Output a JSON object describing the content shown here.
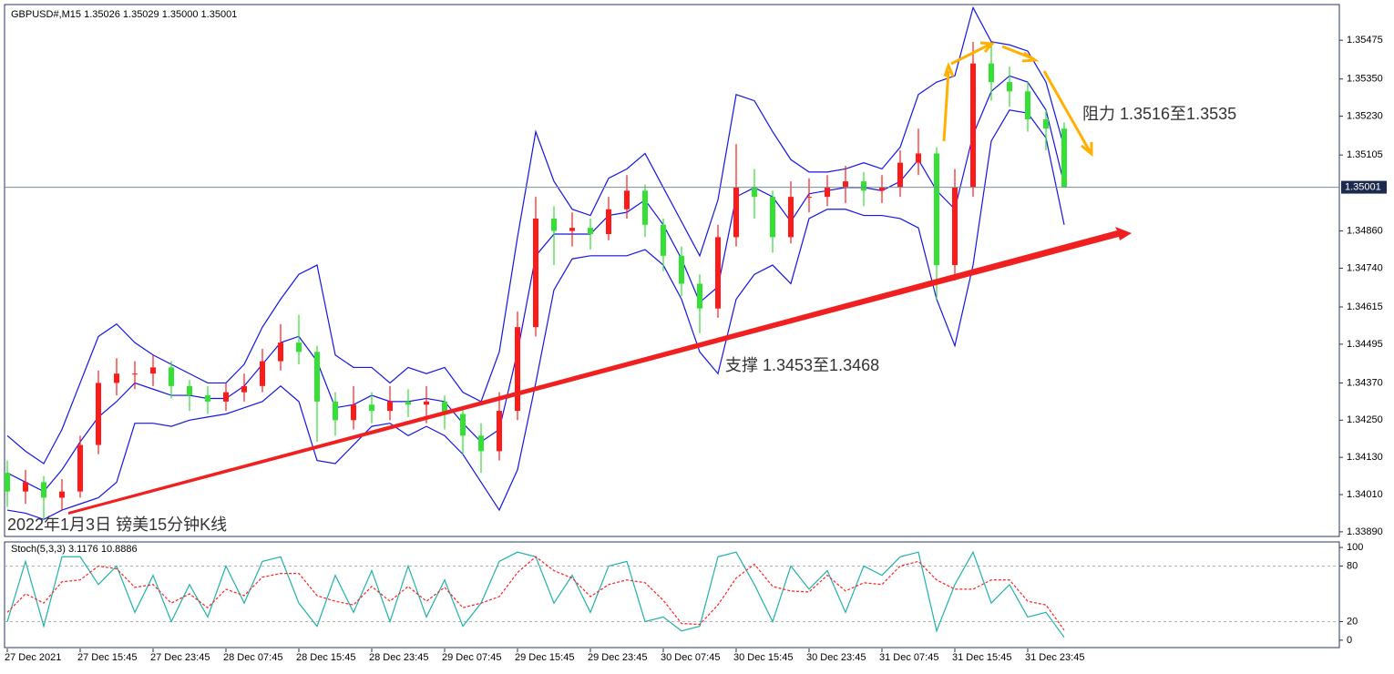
{
  "chart_data": [
    {
      "type": "candlestick",
      "title": "GBPUSD#,M15  1.35026 1.35029 1.35000 1.35001",
      "categories": [
        "27 Dec 2021",
        null,
        null,
        null,
        "27 Dec 15:45",
        null,
        null,
        null,
        "27 Dec 23:45",
        null,
        null,
        null,
        "28 Dec 07:45",
        null,
        null,
        null,
        "28 Dec 15:45",
        null,
        null,
        null,
        "28 Dec 23:45",
        null,
        null,
        null,
        "29 Dec 07:45",
        null,
        null,
        null,
        "29 Dec 15:45",
        null,
        null,
        null,
        "29 Dec 23:45",
        null,
        null,
        null,
        "30 Dec 07:45",
        null,
        null,
        null,
        "30 Dec 15:45",
        null,
        null,
        null,
        "30 Dec 23:45",
        null,
        null,
        null,
        "31 Dec 07:45",
        null,
        null,
        null,
        "31 Dec 15:45",
        null,
        null,
        null,
        "31 Dec 23:45",
        null,
        null
      ],
      "open": [
        1.3408,
        1.3402,
        1.3405,
        1.34,
        1.3402,
        1.3417,
        1.3437,
        1.344,
        1.344,
        1.3442,
        1.3436,
        1.3433,
        1.3431,
        1.3434,
        1.3436,
        1.3444,
        1.345,
        1.3447,
        1.3431,
        1.3425,
        1.343,
        1.3428,
        1.3431,
        1.343,
        1.3431,
        1.3427,
        1.342,
        1.3415,
        1.3428,
        1.3455,
        1.349,
        1.3486,
        1.3487,
        1.3485,
        1.3493,
        1.3499,
        1.3488,
        1.3478,
        1.3469,
        1.3461,
        1.3484,
        1.35,
        1.3497,
        1.3484,
        1.3497,
        1.3497,
        1.35,
        1.3502,
        1.3499,
        1.35,
        1.3508,
        1.3511,
        1.3475,
        1.35,
        1.354,
        1.3534,
        1.3531,
        1.3522,
        1.3519
      ],
      "high": [
        1.3412,
        1.3409,
        1.3407,
        1.3406,
        1.342,
        1.3441,
        1.3445,
        1.3444,
        1.3446,
        1.3444,
        1.3438,
        1.3436,
        1.3437,
        1.344,
        1.3448,
        1.3456,
        1.3459,
        1.3449,
        1.3434,
        1.3436,
        1.3434,
        1.3436,
        1.3435,
        1.3436,
        1.3433,
        1.3429,
        1.3424,
        1.3434,
        1.346,
        1.3497,
        1.3494,
        1.3492,
        1.349,
        1.3497,
        1.3504,
        1.3501,
        1.349,
        1.3481,
        1.3472,
        1.3488,
        1.3514,
        1.3506,
        1.3499,
        1.3502,
        1.3503,
        1.3504,
        1.3507,
        1.3505,
        1.3504,
        1.3512,
        1.3519,
        1.3513,
        1.3506,
        1.3547,
        1.3546,
        1.3539,
        1.3534,
        1.3525,
        1.3521
      ],
      "low": [
        1.3397,
        1.3398,
        1.3393,
        1.3396,
        1.34,
        1.3414,
        1.3433,
        1.3435,
        1.3436,
        1.3432,
        1.3428,
        1.3427,
        1.3428,
        1.3431,
        1.3434,
        1.3441,
        1.3443,
        1.3418,
        1.342,
        1.3422,
        1.3424,
        1.3425,
        1.3426,
        1.3424,
        1.3422,
        1.3414,
        1.3408,
        1.3412,
        1.3425,
        1.3452,
        1.3475,
        1.3481,
        1.348,
        1.3483,
        1.349,
        1.3484,
        1.3473,
        1.3465,
        1.3453,
        1.3458,
        1.3481,
        1.349,
        1.3479,
        1.3482,
        1.3492,
        1.3494,
        1.3495,
        1.3494,
        1.3495,
        1.3497,
        1.3504,
        1.3464,
        1.347,
        1.3497,
        1.3528,
        1.3526,
        1.3518,
        1.3512,
        1.35
      ],
      "close": [
        1.3402,
        1.3405,
        1.34,
        1.3402,
        1.3417,
        1.3437,
        1.344,
        1.344,
        1.3442,
        1.3436,
        1.3433,
        1.3431,
        1.3434,
        1.3436,
        1.3444,
        1.345,
        1.3447,
        1.3431,
        1.3425,
        1.343,
        1.3428,
        1.3431,
        1.343,
        1.3431,
        1.3427,
        1.342,
        1.3415,
        1.3428,
        1.3455,
        1.349,
        1.3486,
        1.3487,
        1.3485,
        1.3493,
        1.3499,
        1.3488,
        1.3478,
        1.3469,
        1.3461,
        1.3484,
        1.35,
        1.3497,
        1.3484,
        1.3497,
        1.3497,
        1.35,
        1.3502,
        1.3499,
        1.35,
        1.3508,
        1.3511,
        1.3475,
        1.35,
        1.354,
        1.3534,
        1.3531,
        1.3522,
        1.3519,
        1.35001
      ],
      "up_color": "#ff1a1a",
      "down_color": "#33e033",
      "series": [
        {
          "color": "#1414e6",
          "values": [
            1.342,
            1.3415,
            1.3411,
            1.3422,
            1.3437,
            1.3452,
            1.3456,
            1.345,
            1.3446,
            1.3443,
            1.344,
            1.3437,
            1.3437,
            1.3443,
            1.3455,
            1.3464,
            1.3472,
            1.3475,
            1.3446,
            1.3442,
            1.3442,
            1.3437,
            1.3442,
            1.344,
            1.3442,
            1.3434,
            1.3431,
            1.3447,
            1.3484,
            1.3518,
            1.3502,
            1.3493,
            1.3491,
            1.3503,
            1.3506,
            1.3511,
            1.35,
            1.3489,
            1.3478,
            1.3496,
            1.353,
            1.3528,
            1.3518,
            1.3509,
            1.3505,
            1.3505,
            1.3506,
            1.3508,
            1.3506,
            1.3513,
            1.353,
            1.3534,
            1.3536,
            1.3558,
            1.3547,
            1.3546,
            1.3544,
            1.3534,
            1.3513
          ]
        },
        {
          "color": "#1414e6",
          "values": [
            1.3408,
            1.3405,
            1.3402,
            1.3409,
            1.3418,
            1.3426,
            1.3431,
            1.3437,
            1.3435,
            1.3433,
            1.3433,
            1.3432,
            1.3432,
            1.3436,
            1.3443,
            1.345,
            1.3452,
            1.3444,
            1.3429,
            1.343,
            1.3433,
            1.3431,
            1.3431,
            1.3432,
            1.3431,
            1.3424,
            1.3418,
            1.3422,
            1.3447,
            1.3478,
            1.3485,
            1.3485,
            1.3485,
            1.3491,
            1.3492,
            1.3496,
            1.3488,
            1.3477,
            1.3463,
            1.3468,
            1.3497,
            1.35,
            1.3497,
            1.3489,
            1.3498,
            1.3499,
            1.35,
            1.35,
            1.3499,
            1.3502,
            1.3509,
            1.3499,
            1.3493,
            1.3517,
            1.3531,
            1.3536,
            1.3534,
            1.3525,
            1.3501
          ]
        },
        {
          "color": "#1414e6",
          "values": [
            1.3396,
            1.3395,
            1.3393,
            1.3396,
            1.3398,
            1.34,
            1.3405,
            1.3424,
            1.3424,
            1.3423,
            1.3425,
            1.3426,
            1.3427,
            1.3429,
            1.3431,
            1.3436,
            1.3431,
            1.3412,
            1.3411,
            1.3417,
            1.3423,
            1.3424,
            1.342,
            1.3423,
            1.342,
            1.3414,
            1.3405,
            1.3396,
            1.3409,
            1.3437,
            1.3467,
            1.3477,
            1.3478,
            1.3478,
            1.3478,
            1.348,
            1.3475,
            1.3464,
            1.3447,
            1.344,
            1.3464,
            1.3472,
            1.3475,
            1.3469,
            1.349,
            1.3493,
            1.3493,
            1.3491,
            1.3491,
            1.349,
            1.3487,
            1.3464,
            1.3449,
            1.3475,
            1.3515,
            1.3525,
            1.3524,
            1.3516,
            1.3488
          ]
        }
      ],
      "ylim": [
        1.33875,
        1.3559
      ],
      "yticks": [
        {
          "value": 1.3389,
          "label": "1.33890"
        },
        {
          "value": 1.3401,
          "label": "1.34010"
        },
        {
          "value": 1.3413,
          "label": "1.34130"
        },
        {
          "value": 1.3425,
          "label": "1.34250"
        },
        {
          "value": 1.3437,
          "label": "1.34370"
        },
        1.34495,
        1.34615,
        {
          "value": 1.3474,
          "label": "1.34740"
        },
        {
          "value": 1.3486,
          "label": "1.34860"
        },
        1.35105,
        {
          "value": 1.3523,
          "label": "1.35230"
        },
        {
          "value": 1.3535,
          "label": "1.35350"
        },
        1.35475
      ],
      "current_price": 1.35001,
      "annotations": [
        "阻力 1.3516至1.3535",
        "支撑 1.3453至1.3468",
        "2022年1月3日 镑美15分钟K线"
      ]
    },
    {
      "type": "line",
      "title": "Stoch(5,3,3) 3.1176 10.8886",
      "series": [
        {
          "color": "#20b2aa",
          "dashed": false,
          "values": [
            20,
            85,
            15,
            90,
            90,
            60,
            80,
            30,
            70,
            20,
            60,
            25,
            80,
            40,
            85,
            90,
            40,
            15,
            70,
            30,
            75,
            20,
            80,
            25,
            65,
            15,
            40,
            85,
            95,
            90,
            40,
            70,
            30,
            80,
            85,
            20,
            25,
            10,
            15,
            90,
            95,
            60,
            20,
            80,
            55,
            75,
            30,
            80,
            70,
            90,
            95,
            10,
            60,
            95,
            40,
            60,
            25,
            30,
            3.1176
          ]
        },
        {
          "color": "#ff2020",
          "dashed": true,
          "values": [
            30,
            50,
            40,
            63,
            65,
            80,
            77,
            57,
            60,
            40,
            50,
            35,
            55,
            48,
            68,
            72,
            72,
            48,
            42,
            38,
            58,
            42,
            58,
            42,
            57,
            35,
            40,
            47,
            73,
            90,
            75,
            67,
            47,
            60,
            65,
            62,
            43,
            18,
            17,
            38,
            67,
            82,
            58,
            53,
            52,
            70,
            53,
            62,
            60,
            80,
            85,
            65,
            55,
            55,
            65,
            65,
            42,
            38,
            10.8886
          ]
        }
      ],
      "ylim": [
        -8,
        106
      ],
      "yticks": [
        0,
        20,
        80,
        100
      ],
      "levels": [
        80,
        20
      ]
    }
  ]
}
